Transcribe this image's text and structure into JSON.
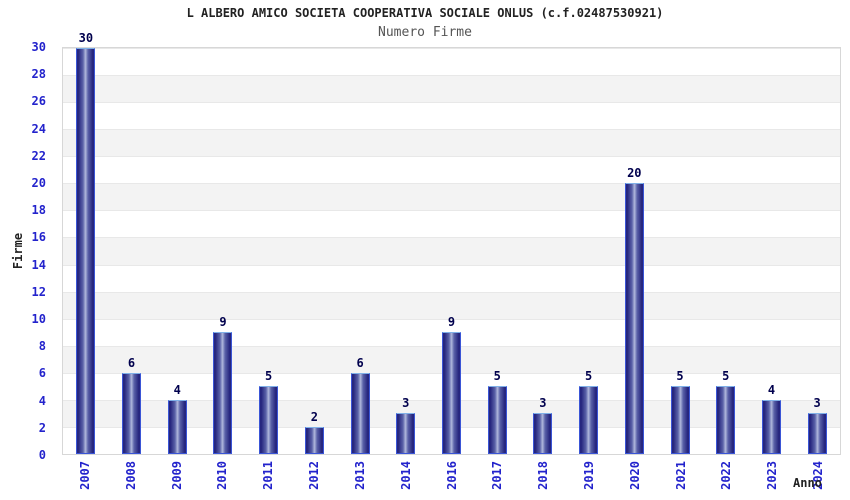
{
  "page": {
    "background": "#ffffff"
  },
  "chart_data": {
    "type": "bar",
    "title": "L ALBERO AMICO SOCIETA COOPERATIVA SOCIALE ONLUS (c.f.02487530921)",
    "subtitle": "Numero Firme",
    "xlabel": "Anno",
    "ylabel": "Firme",
    "categories": [
      "2007",
      "2008",
      "2009",
      "2010",
      "2011",
      "2012",
      "2013",
      "2014",
      "2016",
      "2017",
      "2018",
      "2019",
      "2020",
      "2021",
      "2022",
      "2023",
      "2024"
    ],
    "values": [
      30,
      6,
      4,
      9,
      5,
      2,
      6,
      3,
      9,
      5,
      3,
      5,
      20,
      5,
      5,
      4,
      3
    ],
    "ylim": [
      0,
      30
    ],
    "ytick_step": 2,
    "yticks": [
      0,
      2,
      4,
      6,
      8,
      10,
      12,
      14,
      16,
      18,
      20,
      22,
      24,
      26,
      28,
      30
    ],
    "grid": "horizontal-stripes-every-2-units",
    "legend": "none",
    "value_labels_shown": true,
    "colors": {
      "page_bg": "#ffffff",
      "title": "#222222",
      "subtitle": "#555555",
      "axis_label": "#222222",
      "tick_label": "#2323cc",
      "value_label": "#00004d",
      "bar_border": "#3a55d6",
      "bar_border_top": "#7fb0e8",
      "bar_edge": "#26267e",
      "bar_mid": "#5a62a8",
      "bar_center": "#b0b8dc",
      "stripe_light": "#ffffff",
      "stripe_dark": "#f3f3f3",
      "gridline": "#e8e8e8",
      "plot_border": "#d7d7d7"
    }
  }
}
